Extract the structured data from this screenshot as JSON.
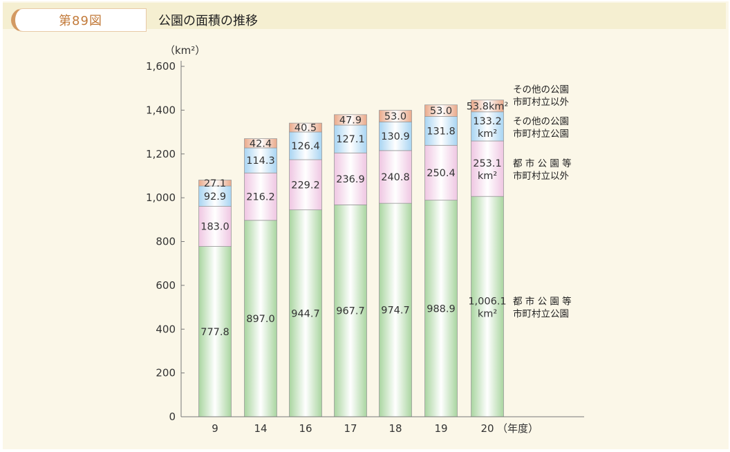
{
  "header": {
    "figure_number": "第89図",
    "title": "公園の面積の推移"
  },
  "chart_data": {
    "type": "bar",
    "stacked": true,
    "ylabel": "（km²）",
    "xlabel": "（年度）",
    "ylim": [
      0,
      1600
    ],
    "yticks": [
      0,
      200,
      400,
      600,
      800,
      1000,
      1200,
      1400,
      1600
    ],
    "ytick_labels": [
      "0",
      "200",
      "400",
      "600",
      "800",
      "1,000",
      "1,200",
      "1,400",
      "1,600"
    ],
    "categories": [
      "9",
      "14",
      "16",
      "17",
      "18",
      "19",
      "20"
    ],
    "series": [
      {
        "name": "都市公園等 市町村立公園",
        "color": "#a9d5a0",
        "values": [
          777.8,
          897.0,
          944.7,
          967.7,
          974.7,
          988.9,
          1006.1
        ],
        "labels": [
          "777.8",
          "897.0",
          "944.7",
          "967.7",
          "974.7",
          "988.9",
          "1,006.1"
        ]
      },
      {
        "name": "都市公園等 市町村立以外",
        "color": "#efc6e2",
        "values": [
          183.0,
          216.2,
          229.2,
          236.9,
          240.8,
          250.4,
          253.1
        ],
        "labels": [
          "183.0",
          "216.2",
          "229.2",
          "236.9",
          "240.8",
          "250.4",
          "253.1"
        ]
      },
      {
        "name": "その他の公園 市町村立公園",
        "color": "#a8d4f2",
        "values": [
          92.9,
          114.3,
          126.4,
          127.1,
          130.9,
          131.8,
          133.2
        ],
        "labels": [
          "92.9",
          "114.3",
          "126.4",
          "127.1",
          "130.9",
          "131.8",
          "133.2"
        ]
      },
      {
        "name": "その他の公園 市町村立以外",
        "color": "#e9a98a",
        "values": [
          27.1,
          42.4,
          40.5,
          47.9,
          53.0,
          53.0,
          53.8
        ],
        "labels": [
          "27.1",
          "42.4",
          "40.5",
          "47.9",
          "53.0",
          "53.0",
          "53.8"
        ]
      }
    ],
    "last_bar_unit": "km²",
    "legend": [
      {
        "line1": "都 市 公 園 等",
        "line2": "市町村立公園"
      },
      {
        "line1": "都 市 公 園 等",
        "line2": "市町村立以外"
      },
      {
        "line1": "その他の公園",
        "line2": "市町村立公園"
      },
      {
        "line1": "その他の公園",
        "line2": "市町村立以外"
      }
    ],
    "legend_position": "right",
    "grid": false
  }
}
